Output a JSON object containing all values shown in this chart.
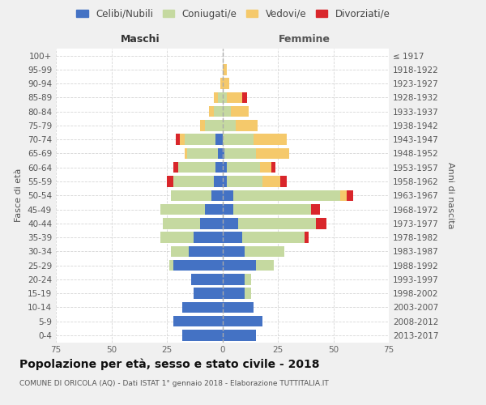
{
  "age_groups": [
    "0-4",
    "5-9",
    "10-14",
    "15-19",
    "20-24",
    "25-29",
    "30-34",
    "35-39",
    "40-44",
    "45-49",
    "50-54",
    "55-59",
    "60-64",
    "65-69",
    "70-74",
    "75-79",
    "80-84",
    "85-89",
    "90-94",
    "95-99",
    "100+"
  ],
  "birth_years": [
    "2013-2017",
    "2008-2012",
    "2003-2007",
    "1998-2002",
    "1993-1997",
    "1988-1992",
    "1983-1987",
    "1978-1982",
    "1973-1977",
    "1968-1972",
    "1963-1967",
    "1958-1962",
    "1953-1957",
    "1948-1952",
    "1943-1947",
    "1938-1942",
    "1933-1937",
    "1928-1932",
    "1923-1927",
    "1918-1922",
    "≤ 1917"
  ],
  "male": {
    "celibi": [
      18,
      22,
      18,
      13,
      14,
      22,
      15,
      13,
      10,
      8,
      5,
      4,
      3,
      2,
      3,
      0,
      0,
      0,
      0,
      0,
      0
    ],
    "coniugati": [
      0,
      0,
      0,
      0,
      0,
      2,
      8,
      15,
      17,
      20,
      18,
      18,
      17,
      14,
      14,
      8,
      4,
      2,
      0,
      0,
      0
    ],
    "vedovi": [
      0,
      0,
      0,
      0,
      0,
      0,
      0,
      0,
      0,
      0,
      0,
      0,
      0,
      1,
      2,
      2,
      2,
      2,
      1,
      0,
      0
    ],
    "divorziati": [
      0,
      0,
      0,
      0,
      0,
      0,
      0,
      0,
      0,
      0,
      0,
      3,
      2,
      0,
      2,
      0,
      0,
      0,
      0,
      0,
      0
    ]
  },
  "female": {
    "nubili": [
      15,
      18,
      14,
      10,
      10,
      15,
      10,
      9,
      7,
      5,
      5,
      2,
      2,
      1,
      0,
      0,
      0,
      0,
      0,
      0,
      0
    ],
    "coniugate": [
      0,
      0,
      0,
      3,
      3,
      8,
      18,
      28,
      35,
      35,
      48,
      16,
      15,
      14,
      14,
      6,
      4,
      2,
      0,
      0,
      0
    ],
    "vedove": [
      0,
      0,
      0,
      0,
      0,
      0,
      0,
      0,
      0,
      0,
      3,
      8,
      5,
      15,
      15,
      10,
      8,
      7,
      3,
      2,
      0
    ],
    "divorziate": [
      0,
      0,
      0,
      0,
      0,
      0,
      0,
      2,
      5,
      4,
      3,
      3,
      2,
      0,
      0,
      0,
      0,
      2,
      0,
      0,
      0
    ]
  },
  "colors": {
    "celibi": "#4472c4",
    "coniugati": "#c5d9a0",
    "vedovi": "#f5c96b",
    "divorziati": "#d9262b"
  },
  "xlim": 75,
  "title": "Popolazione per età, sesso e stato civile - 2018",
  "subtitle": "COMUNE DI ORICOLA (AQ) - Dati ISTAT 1° gennaio 2018 - Elaborazione TUTTITALIA.IT",
  "ylabel_left": "Fasce di età",
  "ylabel_right": "Anni di nascita",
  "xlabel_left": "Maschi",
  "xlabel_right": "Femmine",
  "legend_labels": [
    "Celibi/Nubili",
    "Coniugati/e",
    "Vedovi/e",
    "Divorziati/e"
  ],
  "bg_color": "#f0f0f0",
  "plot_bg": "#ffffff"
}
